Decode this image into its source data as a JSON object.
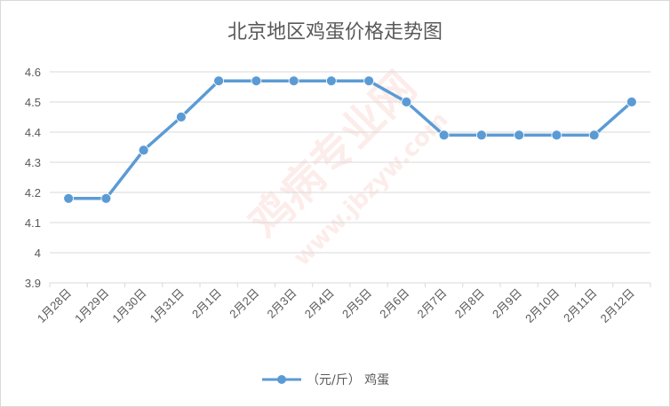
{
  "chart_data": {
    "type": "line",
    "title": "北京地区鸡蛋价格走势图",
    "xlabel": "",
    "ylabel": "",
    "categories": [
      "1月28日",
      "1月29日",
      "1月30日",
      "1月31日",
      "2月1日",
      "2月2日",
      "2月3日",
      "2月4日",
      "2月5日",
      "2月6日",
      "2月7日",
      "2月8日",
      "2月9日",
      "2月10日",
      "2月11日",
      "2月12日"
    ],
    "series": [
      {
        "name": "（元/斤） 鸡蛋",
        "values": [
          4.18,
          4.18,
          4.34,
          4.45,
          4.57,
          4.57,
          4.57,
          4.57,
          4.57,
          4.5,
          4.39,
          4.39,
          4.39,
          4.39,
          4.39,
          4.5
        ]
      }
    ],
    "ylim": [
      3.9,
      4.6
    ],
    "yticks": [
      "3.9",
      "4",
      "4.1",
      "4.2",
      "4.3",
      "4.4",
      "4.5",
      "4.6"
    ],
    "grid": true,
    "legend_position": "bottom",
    "colors": {
      "line": "#5b9bd5",
      "grid": "#d9d9d9",
      "text": "#595959"
    }
  },
  "watermark": {
    "text": "鸡病专业网",
    "url": "www.jbzyw.com"
  }
}
